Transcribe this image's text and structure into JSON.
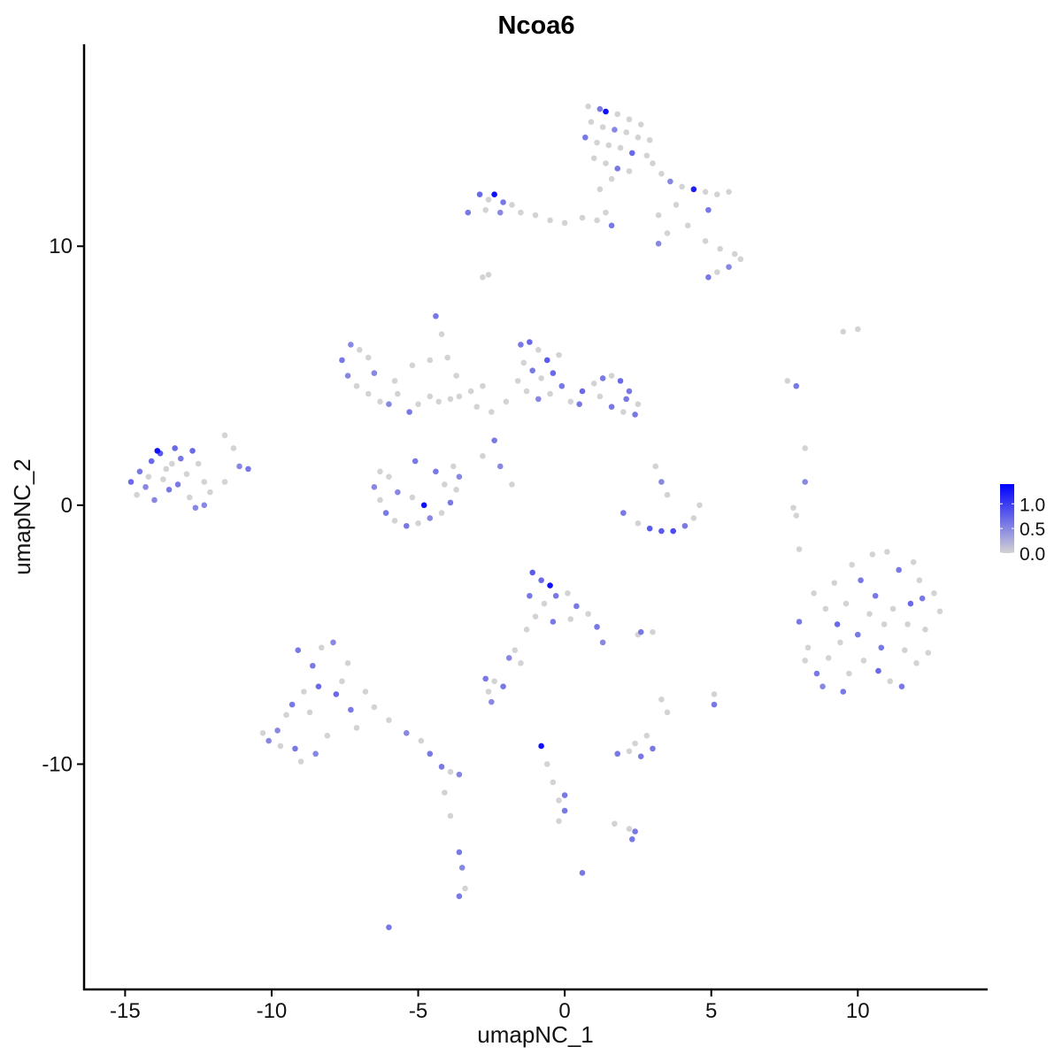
{
  "chart_data": {
    "type": "scatter",
    "title": "Ncoa6",
    "xlabel": "umapNC_1",
    "ylabel": "umapNC_2",
    "xlim": [
      -16.4,
      14.4
    ],
    "ylim": [
      -18.7,
      17.8
    ],
    "xticks": [
      -15,
      -10,
      -5,
      0,
      5,
      10
    ],
    "yticks": [
      -10,
      0,
      10
    ],
    "xtick_labels": [
      "-15",
      "-10",
      "-5",
      "0",
      "5",
      "10"
    ],
    "ytick_labels": [
      "-10",
      "0",
      "10"
    ],
    "grid": false,
    "legend": {
      "placement": "right",
      "type": "colorbar",
      "min": 0.0,
      "max": 1.4,
      "ticks": [
        0.0,
        0.5,
        1.0
      ],
      "tick_labels": [
        "0.0",
        "0.5",
        "1.0"
      ],
      "low_color": "#d3d3d3",
      "high_color": "#0000ff"
    },
    "point_format": [
      "umapNC_1",
      "umapNC_2",
      "expression"
    ],
    "points": [
      [
        0.8,
        15.4,
        0
      ],
      [
        1.2,
        15.3,
        0.6
      ],
      [
        1.4,
        15.2,
        1.3
      ],
      [
        1.8,
        15.1,
        0
      ],
      [
        2.2,
        14.9,
        0
      ],
      [
        2.6,
        14.7,
        0
      ],
      [
        0.9,
        14.8,
        0
      ],
      [
        1.3,
        14.6,
        0
      ],
      [
        1.7,
        14.5,
        0.5
      ],
      [
        2.1,
        14.4,
        0
      ],
      [
        2.5,
        14.2,
        0
      ],
      [
        2.9,
        14.1,
        0
      ],
      [
        0.7,
        14.2,
        0.6
      ],
      [
        1.1,
        14.0,
        0
      ],
      [
        1.5,
        13.9,
        0
      ],
      [
        1.9,
        13.8,
        0
      ],
      [
        2.3,
        13.6,
        0.7
      ],
      [
        2.8,
        13.5,
        0
      ],
      [
        1.0,
        13.4,
        0
      ],
      [
        1.4,
        13.2,
        0
      ],
      [
        1.8,
        13.0,
        0.6
      ],
      [
        2.2,
        12.9,
        0
      ],
      [
        1.6,
        12.6,
        0
      ],
      [
        1.2,
        12.2,
        0
      ],
      [
        3.0,
        13.2,
        0
      ],
      [
        3.3,
        12.8,
        0
      ],
      [
        3.6,
        12.5,
        0.5
      ],
      [
        4.0,
        12.3,
        0
      ],
      [
        4.4,
        12.2,
        1.2
      ],
      [
        4.8,
        12.1,
        0
      ],
      [
        5.2,
        12.0,
        0
      ],
      [
        5.6,
        12.1,
        0
      ],
      [
        4.9,
        11.4,
        0.6
      ],
      [
        3.8,
        11.6,
        0
      ],
      [
        3.2,
        11.2,
        0
      ],
      [
        3.5,
        10.5,
        0
      ],
      [
        4.2,
        10.8,
        0
      ],
      [
        4.8,
        10.2,
        0
      ],
      [
        5.3,
        9.9,
        0
      ],
      [
        5.8,
        9.7,
        0
      ],
      [
        6.0,
        9.5,
        0
      ],
      [
        5.6,
        9.2,
        0.5
      ],
      [
        5.2,
        9.0,
        0
      ],
      [
        4.9,
        8.8,
        0.6
      ],
      [
        3.2,
        10.1,
        0.5
      ],
      [
        -3.3,
        11.3,
        0.6
      ],
      [
        -2.9,
        12.0,
        0.7
      ],
      [
        -2.6,
        11.8,
        0
      ],
      [
        -2.4,
        12.0,
        1.3
      ],
      [
        -2.1,
        11.7,
        0.6
      ],
      [
        -1.8,
        11.6,
        0
      ],
      [
        -2.7,
        11.4,
        0
      ],
      [
        -2.2,
        11.3,
        0.5
      ],
      [
        -1.5,
        11.3,
        0
      ],
      [
        -1.0,
        11.2,
        0
      ],
      [
        -0.5,
        11.0,
        0
      ],
      [
        0,
        10.9,
        0
      ],
      [
        0.6,
        11.1,
        0
      ],
      [
        1.1,
        11.0,
        0
      ],
      [
        1.6,
        10.8,
        0.6
      ],
      [
        1.4,
        11.3,
        0
      ],
      [
        -2.8,
        8.8,
        0
      ],
      [
        -2.6,
        8.9,
        0
      ],
      [
        9.5,
        6.7,
        0
      ],
      [
        10.0,
        6.8,
        0
      ],
      [
        7.6,
        4.8,
        0
      ],
      [
        7.9,
        4.6,
        0.6
      ],
      [
        8.2,
        2.2,
        0
      ],
      [
        8.2,
        0.9,
        0.5
      ],
      [
        7.8,
        -0.1,
        0
      ],
      [
        7.9,
        -0.4,
        0
      ],
      [
        8.0,
        -1.7,
        0
      ],
      [
        -14.8,
        0.9,
        0.7
      ],
      [
        -14.5,
        1.3,
        0.6
      ],
      [
        -14.3,
        0.7,
        0.5
      ],
      [
        -14.1,
        1.7,
        0.7
      ],
      [
        -13.8,
        2.0,
        0.8
      ],
      [
        -13.6,
        1.4,
        0
      ],
      [
        -13.5,
        0.6,
        0.6
      ],
      [
        -13.3,
        2.2,
        0.7
      ],
      [
        -13.1,
        1.8,
        0.6
      ],
      [
        -12.9,
        1.2,
        0
      ],
      [
        -12.7,
        2.1,
        0.7
      ],
      [
        -12.5,
        1.6,
        0
      ],
      [
        -12.3,
        0.9,
        0
      ],
      [
        -12.1,
        0.5,
        0
      ],
      [
        -14.6,
        0.4,
        0
      ],
      [
        -14.0,
        0.2,
        0.5
      ],
      [
        -13.7,
        1.0,
        0
      ],
      [
        -13.2,
        0.8,
        0.6
      ],
      [
        -12.8,
        0.3,
        0
      ],
      [
        -12.6,
        -0.1,
        0.5
      ],
      [
        -12.3,
        0.0,
        0.5
      ],
      [
        -13.9,
        2.1,
        1.3
      ],
      [
        -14.2,
        1.1,
        0
      ],
      [
        -13.4,
        1.6,
        0
      ],
      [
        -11.6,
        2.7,
        0
      ],
      [
        -11.3,
        2.2,
        0
      ],
      [
        -11.1,
        1.5,
        0.5
      ],
      [
        -11.6,
        0.9,
        0
      ],
      [
        -10.8,
        1.4,
        0.6
      ],
      [
        -7.6,
        5.6,
        0.6
      ],
      [
        -7.3,
        6.2,
        0.5
      ],
      [
        -7.0,
        6.0,
        0
      ],
      [
        -6.7,
        5.7,
        0
      ],
      [
        -7.4,
        5.0,
        0.5
      ],
      [
        -7.1,
        4.6,
        0
      ],
      [
        -6.7,
        4.3,
        0
      ],
      [
        -6.3,
        4.0,
        0
      ],
      [
        -6.0,
        3.9,
        0.5
      ],
      [
        -5.7,
        4.3,
        0
      ],
      [
        -5.3,
        3.6,
        0.6
      ],
      [
        -5.0,
        3.9,
        0
      ],
      [
        -4.6,
        4.2,
        0
      ],
      [
        -4.3,
        4.0,
        0
      ],
      [
        -3.9,
        4.1,
        0
      ],
      [
        -3.6,
        4.2,
        0
      ],
      [
        -3.2,
        4.4,
        0
      ],
      [
        -6.5,
        5.1,
        0.5
      ],
      [
        -5.8,
        4.8,
        0
      ],
      [
        -5.2,
        5.4,
        0
      ],
      [
        -4.6,
        5.6,
        0
      ],
      [
        -4.4,
        7.3,
        0.6
      ],
      [
        -4.2,
        6.6,
        0
      ],
      [
        -4.0,
        5.7,
        0
      ],
      [
        -3.7,
        5.0,
        0
      ],
      [
        -2.8,
        4.6,
        0
      ],
      [
        -2.4,
        2.5,
        0.6
      ],
      [
        -2.8,
        1.9,
        0
      ],
      [
        -2.2,
        1.5,
        0.5
      ],
      [
        -1.8,
        0.8,
        0
      ],
      [
        -1.5,
        6.2,
        0.6
      ],
      [
        -1.2,
        6.3,
        0.7
      ],
      [
        -0.9,
        6.0,
        0
      ],
      [
        -0.6,
        5.6,
        0.8
      ],
      [
        -1.4,
        5.5,
        0
      ],
      [
        -1.1,
        5.2,
        0.6
      ],
      [
        -0.8,
        4.9,
        0
      ],
      [
        -0.4,
        5.1,
        0.7
      ],
      [
        -1.6,
        4.8,
        0
      ],
      [
        -1.3,
        4.4,
        0
      ],
      [
        -0.9,
        4.1,
        0.5
      ],
      [
        -0.5,
        4.3,
        0
      ],
      [
        -0.1,
        4.6,
        0.6
      ],
      [
        0.2,
        4.0,
        0
      ],
      [
        0.6,
        4.4,
        0.7
      ],
      [
        1.0,
        4.7,
        0
      ],
      [
        1.3,
        4.9,
        0.6
      ],
      [
        1.6,
        5.0,
        0
      ],
      [
        1.9,
        4.8,
        0.7
      ],
      [
        2.2,
        4.4,
        0.6
      ],
      [
        2.5,
        3.9,
        0
      ],
      [
        2.4,
        3.5,
        0.6
      ],
      [
        2.0,
        3.6,
        0
      ],
      [
        1.6,
        3.8,
        0.6
      ],
      [
        1.2,
        4.2,
        0
      ],
      [
        -2.0,
        4.0,
        0
      ],
      [
        -2.5,
        3.6,
        0
      ],
      [
        -3.0,
        3.8,
        0
      ],
      [
        0.5,
        3.9,
        0.6
      ],
      [
        -0.2,
        5.8,
        0
      ],
      [
        2.1,
        4.1,
        0.6
      ],
      [
        -6.5,
        0.7,
        0.5
      ],
      [
        -6.3,
        0.2,
        0
      ],
      [
        -6.1,
        -0.3,
        0.6
      ],
      [
        -5.8,
        -0.6,
        0
      ],
      [
        -5.4,
        -0.8,
        0.6
      ],
      [
        -5.0,
        -0.7,
        0
      ],
      [
        -4.6,
        -0.5,
        0.5
      ],
      [
        -4.2,
        -0.3,
        0
      ],
      [
        -3.9,
        0.1,
        0.6
      ],
      [
        -3.7,
        0.6,
        0
      ],
      [
        -3.6,
        1.1,
        0.5
      ],
      [
        -3.8,
        1.5,
        0
      ],
      [
        -4.8,
        0.0,
        1.3
      ],
      [
        -5.2,
        0.3,
        0
      ],
      [
        -5.7,
        0.5,
        0.5
      ],
      [
        -6.0,
        1.1,
        0
      ],
      [
        -4.4,
        1.3,
        0.6
      ],
      [
        -4.1,
        0.8,
        0
      ],
      [
        -5.1,
        1.7,
        0.6
      ],
      [
        -6.3,
        1.3,
        0
      ],
      [
        2.0,
        -0.3,
        0.6
      ],
      [
        2.5,
        -0.7,
        0
      ],
      [
        2.9,
        -0.9,
        0.8
      ],
      [
        3.3,
        -1.0,
        0.8
      ],
      [
        3.7,
        -1.0,
        0.9
      ],
      [
        4.1,
        -0.8,
        0.6
      ],
      [
        4.4,
        -0.5,
        0
      ],
      [
        4.6,
        0.0,
        0
      ],
      [
        3.1,
        1.5,
        0
      ],
      [
        3.3,
        0.9,
        0.5
      ],
      [
        3.5,
        0.4,
        0
      ],
      [
        8.0,
        -4.5,
        0.6
      ],
      [
        8.3,
        -5.5,
        0
      ],
      [
        8.6,
        -6.5,
        0.6
      ],
      [
        8.9,
        -4.0,
        0
      ],
      [
        9.2,
        -3.0,
        0
      ],
      [
        9.5,
        -7.2,
        0.6
      ],
      [
        9.8,
        -2.3,
        0
      ],
      [
        10.0,
        -5.0,
        0.6
      ],
      [
        10.2,
        -6.0,
        0
      ],
      [
        10.5,
        -1.9,
        0
      ],
      [
        10.6,
        -3.5,
        0.6
      ],
      [
        10.9,
        -4.6,
        0
      ],
      [
        11.1,
        -6.8,
        0
      ],
      [
        11.4,
        -2.5,
        0.6
      ],
      [
        11.6,
        -5.6,
        0
      ],
      [
        11.8,
        -3.8,
        0.7
      ],
      [
        12.1,
        -2.9,
        0
      ],
      [
        12.3,
        -4.8,
        0
      ],
      [
        12.6,
        -3.4,
        0
      ],
      [
        12.8,
        -4.1,
        0
      ],
      [
        8.5,
        -3.4,
        0
      ],
      [
        9.0,
        -5.9,
        0
      ],
      [
        9.3,
        -4.6,
        0.7
      ],
      [
        9.7,
        -6.5,
        0
      ],
      [
        10.4,
        -4.2,
        0
      ],
      [
        10.8,
        -5.5,
        0.6
      ],
      [
        11.2,
        -4.0,
        0
      ],
      [
        11.5,
        -7.0,
        0.6
      ],
      [
        12.0,
        -6.1,
        0
      ],
      [
        12.4,
        -5.7,
        0
      ],
      [
        9.6,
        -3.8,
        0
      ],
      [
        10.1,
        -2.9,
        0.6
      ],
      [
        11.0,
        -1.8,
        0
      ],
      [
        11.9,
        -2.2,
        0
      ],
      [
        8.2,
        -6.0,
        0
      ],
      [
        9.4,
        -5.3,
        0
      ],
      [
        10.7,
        -6.4,
        0.7
      ],
      [
        11.7,
        -4.6,
        0
      ],
      [
        8.8,
        -7.0,
        0.5
      ],
      [
        12.2,
        -3.6,
        0.6
      ],
      [
        -1.1,
        -2.6,
        0.8
      ],
      [
        -0.8,
        -2.9,
        0.7
      ],
      [
        -0.5,
        -3.1,
        1.3
      ],
      [
        -1.2,
        -3.5,
        0.6
      ],
      [
        -0.7,
        -3.8,
        0
      ],
      [
        -0.3,
        -3.5,
        0.6
      ],
      [
        0.1,
        -3.4,
        0
      ],
      [
        0.4,
        -3.9,
        0.6
      ],
      [
        0.8,
        -4.2,
        0
      ],
      [
        1.1,
        -4.7,
        0.6
      ],
      [
        1.3,
        -5.3,
        0.5
      ],
      [
        -1.0,
        -4.3,
        0
      ],
      [
        -0.4,
        -4.5,
        0.6
      ],
      [
        0.2,
        -4.4,
        0
      ],
      [
        -1.3,
        -4.8,
        0
      ],
      [
        -1.7,
        -5.6,
        0
      ],
      [
        -1.9,
        -5.9,
        0.5
      ],
      [
        2.6,
        -4.9,
        0.6
      ],
      [
        3.0,
        -4.9,
        0
      ],
      [
        2.5,
        -5.0,
        0
      ],
      [
        -9.8,
        -8.7,
        0.5
      ],
      [
        -9.5,
        -8.1,
        0
      ],
      [
        -9.2,
        -9.4,
        0.6
      ],
      [
        -8.9,
        -7.2,
        0
      ],
      [
        -8.6,
        -6.2,
        0.6
      ],
      [
        -8.3,
        -5.5,
        0
      ],
      [
        -7.9,
        -5.3,
        0.5
      ],
      [
        -7.6,
        -6.8,
        0
      ],
      [
        -7.3,
        -7.9,
        0.6
      ],
      [
        -7.1,
        -8.6,
        0
      ],
      [
        -8.1,
        -8.9,
        0
      ],
      [
        -8.5,
        -9.6,
        0.5
      ],
      [
        -9.0,
        -9.9,
        0
      ],
      [
        -9.7,
        -9.3,
        0
      ],
      [
        -10.3,
        -8.8,
        0
      ],
      [
        -8.4,
        -7.0,
        0.7
      ],
      [
        -8.7,
        -8.0,
        0
      ],
      [
        -9.3,
        -7.7,
        0.6
      ],
      [
        -7.8,
        -7.3,
        0.7
      ],
      [
        -7.4,
        -6.1,
        0
      ],
      [
        -6.8,
        -7.2,
        0
      ],
      [
        -6.5,
        -7.8,
        0
      ],
      [
        -6.0,
        -8.3,
        0
      ],
      [
        -5.4,
        -8.8,
        0.5
      ],
      [
        -4.9,
        -9.1,
        0
      ],
      [
        -4.6,
        -9.6,
        0.6
      ],
      [
        -4.2,
        -10.1,
        0.6
      ],
      [
        -3.9,
        -10.3,
        0
      ],
      [
        -3.6,
        -10.4,
        0.5
      ],
      [
        -4.1,
        -11.1,
        0
      ],
      [
        -3.9,
        -12.0,
        0
      ],
      [
        -3.6,
        -13.4,
        0.6
      ],
      [
        -3.5,
        -14.0,
        0.5
      ],
      [
        -3.4,
        -14.8,
        0
      ],
      [
        -3.6,
        -15.1,
        0.6
      ],
      [
        -6.0,
        -16.3,
        0.6
      ],
      [
        -10.1,
        -9.1,
        0.5
      ],
      [
        -9.1,
        -5.6,
        0.6
      ],
      [
        -2.7,
        -6.7,
        0.6
      ],
      [
        -2.4,
        -6.8,
        0
      ],
      [
        -2.1,
        -7.0,
        0.6
      ],
      [
        -2.6,
        -7.2,
        0
      ],
      [
        -2.5,
        -7.6,
        0.5
      ],
      [
        -1.5,
        -6.1,
        0
      ],
      [
        1.8,
        -9.6,
        0.6
      ],
      [
        2.2,
        -9.5,
        0
      ],
      [
        2.6,
        -9.7,
        0.6
      ],
      [
        3.0,
        -9.4,
        0.6
      ],
      [
        2.4,
        -9.2,
        0
      ],
      [
        2.8,
        -8.9,
        0
      ],
      [
        -0.8,
        -9.3,
        1.3
      ],
      [
        -0.6,
        -10.0,
        0
      ],
      [
        -0.4,
        -10.7,
        0
      ],
      [
        -0.2,
        -11.4,
        0
      ],
      [
        0,
        -11.8,
        0.6
      ],
      [
        -0.2,
        -12.2,
        0
      ],
      [
        0.6,
        -14.2,
        0.6
      ],
      [
        1.7,
        -12.3,
        0
      ],
      [
        2.2,
        -12.5,
        0
      ],
      [
        2.4,
        -12.6,
        0.6
      ],
      [
        2.3,
        -12.9,
        0.6
      ],
      [
        5.1,
        -7.3,
        0
      ],
      [
        5.1,
        -7.7,
        0.6
      ],
      [
        3.3,
        -7.5,
        0
      ],
      [
        3.5,
        -8.0,
        0
      ],
      [
        0,
        -11.2,
        0.6
      ]
    ]
  }
}
